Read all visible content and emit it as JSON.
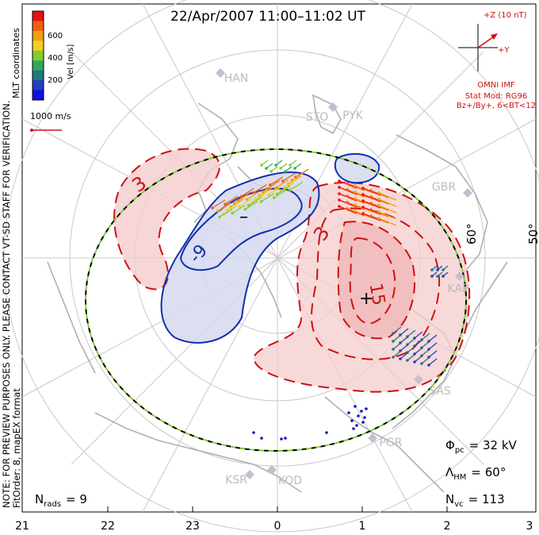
{
  "title": "22/Apr/2007 11:00–11:02 UT",
  "colorbar": {
    "unit_label": "Vel [m/s]",
    "ticks": [
      "600",
      "400",
      "200"
    ],
    "stops": [
      "#e81010",
      "#f06010",
      "#f0a010",
      "#f0d020",
      "#80d030",
      "#30a860",
      "#207880",
      "#2040c0",
      "#1010e0"
    ]
  },
  "coordinate_label": "MLT coordinates",
  "scale": {
    "label": "1000 m/s",
    "color": "#c81818"
  },
  "side_note": {
    "line1": "NOTE: FOR PREVIEW PURPOSES ONLY. PLEASE CONTACT VT-SD STAFF FOR VERIFICATION.",
    "line2": "FitOrder: 8, mapEX format"
  },
  "imf": {
    "z_label": "+Z (10 nT)",
    "y_label": "+Y",
    "source": "OMNI IMF",
    "model": "Stat Mod: RG96",
    "conditions": "Bz+/By+, 6<BT<12",
    "color": "#d01010"
  },
  "contours": {
    "pos_label": "3",
    "pos_label_2": "3",
    "pos_label_3": "15",
    "neg_label": "-9",
    "pos_extremum": "+",
    "neg_extremum": "–",
    "pos_color": "#d01010",
    "neg_color": "#1030b0",
    "pos_fill": "#f4cccc",
    "neg_fill": "#d6d8ee"
  },
  "latitude_labels": [
    "60°",
    "50°"
  ],
  "stations": [
    "HAN",
    "STO",
    "PYK",
    "GBR",
    "KAP",
    "SAS",
    "PGR",
    "KSR",
    "KOD"
  ],
  "mlt_ticks": [
    "21",
    "22",
    "23",
    "0",
    "1",
    "2",
    "3"
  ],
  "stats": {
    "phi_pc_symbol": "Φ",
    "phi_pc_sub": "pc",
    "phi_pc_value": "= 32 kV",
    "lambda_hm_symbol": "Λ",
    "lambda_hm_sub": "HM",
    "lambda_hm_value": "= 60°",
    "n_vc_symbol": "N",
    "n_vc_sub": "vc",
    "n_vc_value": "= 113",
    "n_rads_symbol": "N",
    "n_rads_sub": "rads",
    "n_rads_value": "= 9"
  },
  "boundary_colors": {
    "dash_dark": "#000000",
    "dash_light": "#80d030"
  },
  "graticule_color": "#c8c8c8",
  "coast_color": "#b0b0b0"
}
